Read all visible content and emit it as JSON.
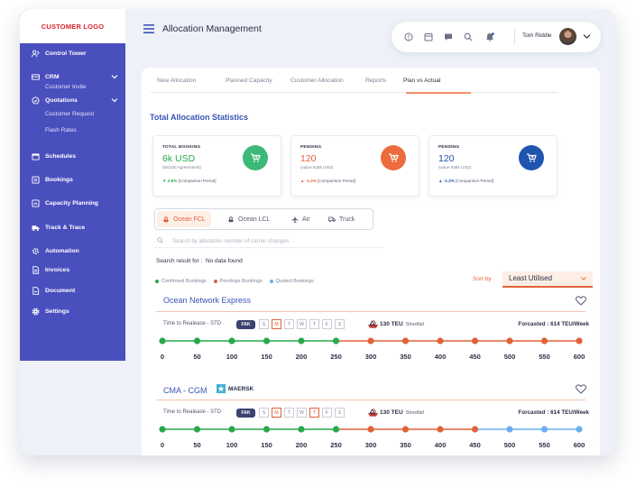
{
  "sidebar": {
    "logo": "CUSTOMER LOGO",
    "control_tower": "Control Tower",
    "crm": "CRM",
    "customer_invite": "Customer Invite",
    "quotations": "Quotations",
    "customer_request": "Customer Request",
    "flash_rates": "Flash Rates",
    "schedules": "Schedules",
    "bookings": "Bookings",
    "capacity_planning": "Capacity Planning",
    "track_trace": "Track & Trace",
    "automation": "Automation",
    "invoices": "Invoices",
    "document": "Document",
    "settings": "Settings"
  },
  "header": {
    "title": "Allocation Management",
    "user_name": "Tom Riddle"
  },
  "tabs": [
    "New Allocation",
    "Planned Capacity",
    "Customer Allocation",
    "Reports",
    "Plan vs Actual"
  ],
  "active_tab": "Plan vs Actual",
  "section_title": "Total Allocation Statistics",
  "stats": [
    {
      "label": "TOTAL BOOKING",
      "value": "6k USD",
      "sub": "(65/100 Agreements)",
      "change": "2.8%",
      "change_suffix": "[Comparison Period]",
      "color": "#27a84a",
      "circle": "#3cb878"
    },
    {
      "label": "PENDING",
      "value": "120",
      "sub": "(value 636k USD)",
      "change": "-1.2%",
      "change_suffix": "[Comparison Period]",
      "color": "#e0623a",
      "circle": "#ed6b3c"
    },
    {
      "label": "PENDING",
      "value": "120",
      "sub": "(value 636k USD)",
      "change": "-1.2%",
      "change_suffix": "[Comparison Period]",
      "color": "#1f4fa8",
      "circle": "#1f55b0"
    }
  ],
  "modes": [
    "Ocean FCL",
    "Ocean LCL",
    "Air",
    "Truck"
  ],
  "search": {
    "placeholder": "Search by allocation number of carrier changes"
  },
  "result": {
    "label": "Search result for :",
    "value": "No data found"
  },
  "legend": [
    {
      "label": "Confirmed Bookings",
      "color": "#27a84a"
    },
    {
      "label": "Pendings Bookings",
      "color": "#e0623a"
    },
    {
      "label": "Quoted Bookings",
      "color": "#6aaef0"
    }
  ],
  "sort": {
    "label": "Sort by",
    "value": "Least Utilised"
  },
  "carriers": [
    {
      "name": "Ocean Network Express",
      "partner": "",
      "time_label": "Time to Realease  - STD",
      "tag": "FAK",
      "days": [
        "S",
        "M",
        "T",
        "W",
        "T",
        "F",
        "S"
      ],
      "days_on": [
        false,
        true,
        false,
        false,
        false,
        false,
        false
      ],
      "teu": "130 TEU",
      "teu_note": "Shortfall",
      "forecast": "Forcasted : 614 TEU/Week",
      "scale": [
        "0",
        "50",
        "100",
        "150",
        "200",
        "250",
        "300",
        "350",
        "400",
        "450",
        "500",
        "550",
        "600"
      ],
      "point_status": [
        "confirmed",
        "confirmed",
        "confirmed",
        "confirmed",
        "confirmed",
        "confirmed",
        "pending",
        "pending",
        "pending",
        "pending",
        "pending",
        "pending",
        "pending"
      ]
    },
    {
      "name": "CMA - CGM",
      "partner": "MAERSK",
      "time_label": "Time to Realease  - STD",
      "tag": "FAK",
      "days": [
        "S",
        "M",
        "T",
        "W",
        "T",
        "F",
        "S"
      ],
      "days_on": [
        false,
        true,
        false,
        false,
        true,
        false,
        false
      ],
      "teu": "130 TEU",
      "teu_note": "Shortfall",
      "forecast": "Forcasted : 614 TEU/Week",
      "scale": [
        "0",
        "50",
        "100",
        "150",
        "200",
        "250",
        "300",
        "350",
        "400",
        "450",
        "500",
        "550",
        "600"
      ],
      "point_status": [
        "confirmed",
        "confirmed",
        "confirmed",
        "confirmed",
        "confirmed",
        "confirmed",
        "pending",
        "pending",
        "pending",
        "pending",
        "quoted",
        "quoted",
        "quoted"
      ]
    }
  ]
}
